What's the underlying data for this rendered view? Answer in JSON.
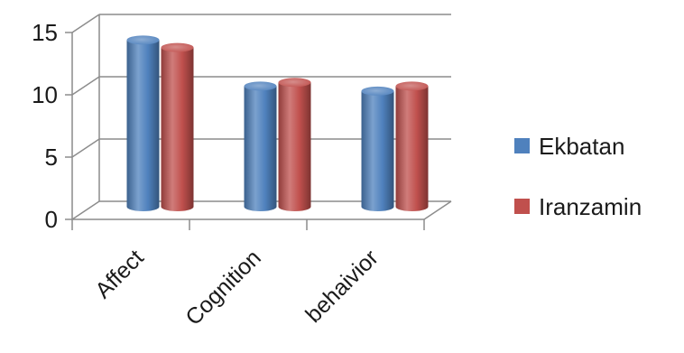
{
  "chart_data": {
    "type": "bar",
    "style": "3d-cylinder",
    "categories": [
      "Affect",
      "Cognition",
      "behaivior"
    ],
    "series": [
      {
        "name": "Ekbatan",
        "values": [
          13.6,
          9.9,
          9.5
        ],
        "color": "#4f81bd"
      },
      {
        "name": "Iranzamin",
        "values": [
          13.0,
          10.2,
          9.9
        ],
        "color": "#c0504d"
      }
    ],
    "yticks": [
      "0",
      "5",
      "10",
      "15"
    ],
    "ylim": [
      0,
      15
    ],
    "title": "",
    "xlabel": "",
    "ylabel": "",
    "grid": true,
    "legend_position": "right"
  }
}
